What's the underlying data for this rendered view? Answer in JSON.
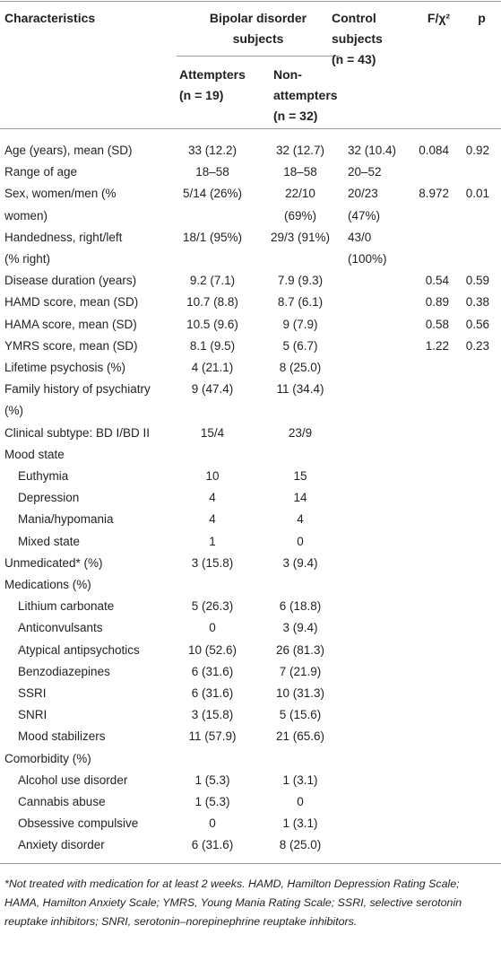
{
  "header": {
    "characteristics": "Characteristics",
    "bipolar": [
      "Bipolar disorder",
      "subjects"
    ],
    "attempters": [
      "Attempters",
      "(n = 19)"
    ],
    "non_attempters": [
      "Non-",
      "attempters",
      "(n = 32)"
    ],
    "control": [
      "Control",
      "subjects",
      "(n = 43)"
    ],
    "statistic": "F/χ²",
    "p": "p"
  },
  "table": {
    "rows": [
      [
        "Age (years), mean (SD)",
        "33 (12.2)",
        "32 (12.7)",
        "32 (10.4)",
        "0.084",
        "0.92"
      ],
      [
        "Range of age",
        "18–58",
        "18–58",
        "20–52",
        null,
        null
      ],
      [
        [
          "Sex, women/men (%",
          "women)"
        ],
        "5/14 (26%)",
        [
          "22/10",
          "(69%)"
        ],
        [
          "20/23",
          "(47%)"
        ],
        "8.972",
        "0.01"
      ],
      [
        [
          "Handedness, right/left",
          "(% right)"
        ],
        "18/1 (95%)",
        "29/3 (91%)",
        [
          "43/0",
          "(100%)"
        ],
        null,
        null
      ],
      [
        "Disease duration (years)",
        "9.2 (7.1)",
        "7.9 (9.3)",
        null,
        "0.54",
        "0.59"
      ],
      [
        "HAMD score, mean (SD)",
        "10.7 (8.8)",
        "8.7 (6.1)",
        null,
        "0.89",
        "0.38"
      ],
      [
        "HAMA score, mean (SD)",
        "10.5 (9.6)",
        "9 (7.9)",
        null,
        "0.58",
        "0.56"
      ],
      [
        "YMRS score, mean (SD)",
        "8.1 (9.5)",
        "5 (6.7)",
        null,
        "1.22",
        "0.23"
      ],
      [
        "Lifetime psychosis (%)",
        "4 (21.1)",
        "8 (25.0)"
      ],
      [
        [
          "Family history of psychiatry",
          "(%)"
        ],
        "9 (47.4)",
        "11 (34.4)"
      ],
      [
        "Clinical subtype: BD I/BD II",
        "15/4",
        "23/9"
      ],
      {
        "heading": "Mood state",
        "rows": [
          [
            "Euthymia",
            "10",
            "15"
          ],
          [
            "Depression",
            "4",
            "14"
          ],
          [
            "Mania/hypomania",
            "4",
            "4"
          ],
          [
            "Mixed state",
            "1",
            "0"
          ]
        ]
      },
      [
        "Unmedicated* (%)",
        "3 (15.8)",
        "3 (9.4)"
      ],
      {
        "heading": "Medications (%)",
        "rows": [
          [
            "Lithium carbonate",
            "5 (26.3)",
            "6 (18.8)"
          ],
          [
            "Anticonvulsants",
            "0",
            "3 (9.4)"
          ],
          [
            "Atypical antipsychotics",
            "10 (52.6)",
            "26 (81.3)"
          ],
          [
            "Benzodiazepines",
            "6 (31.6)",
            "7 (21.9)"
          ],
          [
            "SSRI",
            "6 (31.6)",
            "10 (31.3)"
          ],
          [
            "SNRI",
            "3 (15.8)",
            "5 (15.6)"
          ],
          [
            "Mood stabilizers",
            "11 (57.9)",
            "21 (65.6)"
          ]
        ]
      },
      {
        "heading": "Comorbidity (%)",
        "rows": [
          [
            "Alcohol use disorder",
            "1 (5.3)",
            "1 (3.1)"
          ],
          [
            "Cannabis abuse",
            "1 (5.3)",
            "0"
          ],
          [
            "Obsessive compulsive",
            "0",
            "1 (3.1)"
          ],
          [
            "Anxiety disorder",
            "6 (31.6)",
            "8 (25.0)"
          ]
        ]
      }
    ]
  },
  "footnote": "*Not treated with medication for at least 2 weeks. HAMD, Hamilton Depression Rating Scale; HAMA, Hamilton Anxiety Scale; YMRS, Young Mania Rating Scale; SSRI, selective serotonin reuptake inhibitors; SNRI, serotonin–norepinephrine reuptake inhibitors."
}
